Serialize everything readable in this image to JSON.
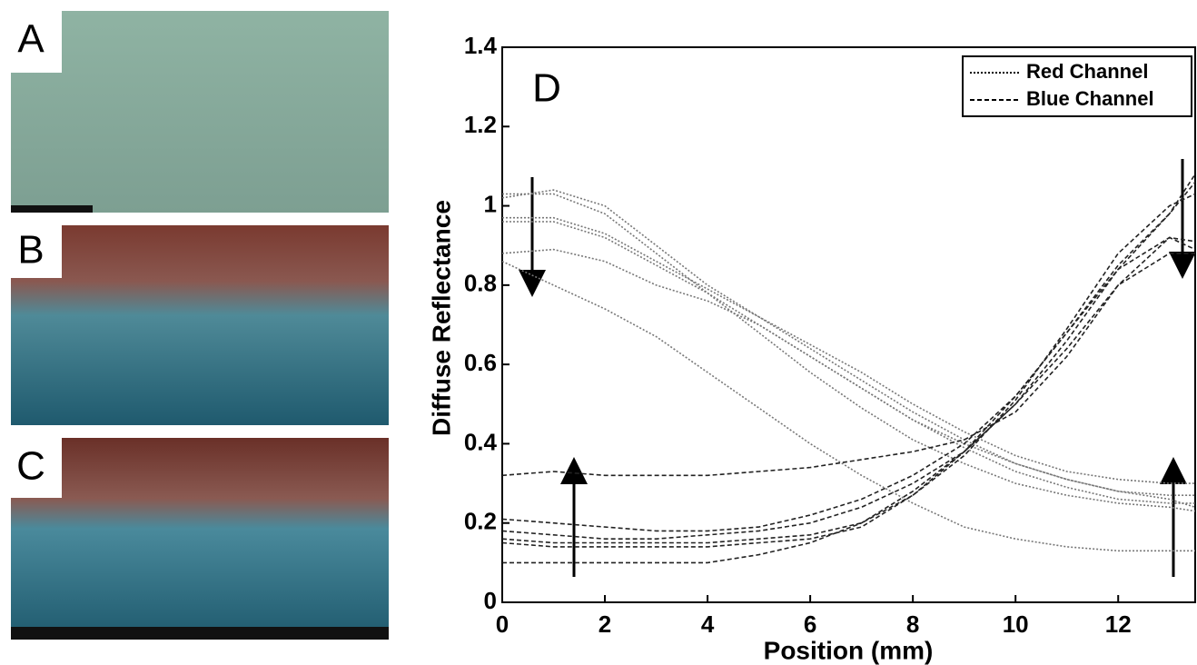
{
  "panels": [
    "A",
    "B",
    "C"
  ],
  "chart_data": {
    "type": "line",
    "panel_label": "D",
    "x_label": "Position (mm)",
    "y_label": "Diffuse Reflectance",
    "x": [
      0,
      1,
      2,
      3,
      4,
      5,
      6,
      7,
      8,
      9,
      10,
      11,
      12,
      13,
      13.5
    ],
    "xlim": [
      0,
      13.5
    ],
    "xticks": [
      0,
      2,
      4,
      6,
      8,
      10,
      12
    ],
    "ylim": [
      0,
      1.4
    ],
    "yticks": [
      0,
      0.2,
      0.4,
      0.6,
      0.8,
      1,
      1.2,
      1.4
    ],
    "legend": "upper right",
    "series": [
      {
        "name": "Red Channel",
        "color": "#777777",
        "dash": "2 2",
        "lines": [
          [
            1.03,
            1.03,
            0.98,
            0.88,
            0.78,
            0.68,
            0.58,
            0.49,
            0.41,
            0.35,
            0.3,
            0.27,
            0.25,
            0.24,
            0.23
          ],
          [
            1.02,
            1.04,
            1.0,
            0.9,
            0.8,
            0.72,
            0.64,
            0.56,
            0.48,
            0.41,
            0.35,
            0.31,
            0.28,
            0.26,
            0.24
          ],
          [
            0.97,
            0.97,
            0.93,
            0.86,
            0.79,
            0.72,
            0.65,
            0.58,
            0.5,
            0.43,
            0.37,
            0.33,
            0.31,
            0.3,
            0.3
          ],
          [
            0.96,
            0.96,
            0.92,
            0.85,
            0.78,
            0.7,
            0.62,
            0.54,
            0.46,
            0.4,
            0.35,
            0.31,
            0.28,
            0.27,
            0.27
          ],
          [
            0.88,
            0.89,
            0.86,
            0.8,
            0.76,
            0.7,
            0.62,
            0.54,
            0.46,
            0.39,
            0.33,
            0.29,
            0.26,
            0.25,
            0.25
          ],
          [
            0.86,
            0.8,
            0.74,
            0.67,
            0.58,
            0.49,
            0.4,
            0.32,
            0.25,
            0.19,
            0.16,
            0.14,
            0.13,
            0.13,
            0.13
          ]
        ]
      },
      {
        "name": "Blue Channel",
        "color": "#222222",
        "dash": "5 3",
        "lines": [
          [
            0.32,
            0.33,
            0.32,
            0.32,
            0.32,
            0.33,
            0.34,
            0.36,
            0.38,
            0.41,
            0.48,
            0.62,
            0.8,
            0.92,
            0.89
          ],
          [
            0.21,
            0.2,
            0.19,
            0.18,
            0.18,
            0.19,
            0.22,
            0.26,
            0.32,
            0.4,
            0.52,
            0.68,
            0.85,
            0.98,
            1.06
          ],
          [
            0.18,
            0.17,
            0.16,
            0.16,
            0.17,
            0.18,
            0.2,
            0.24,
            0.3,
            0.38,
            0.5,
            0.66,
            0.84,
            0.98,
            1.08
          ],
          [
            0.16,
            0.15,
            0.15,
            0.15,
            0.15,
            0.16,
            0.17,
            0.2,
            0.27,
            0.37,
            0.51,
            0.69,
            0.88,
            1.0,
            1.03
          ],
          [
            0.15,
            0.14,
            0.14,
            0.14,
            0.14,
            0.15,
            0.16,
            0.19,
            0.27,
            0.38,
            0.52,
            0.68,
            0.84,
            0.92,
            0.91
          ],
          [
            0.1,
            0.1,
            0.1,
            0.1,
            0.1,
            0.12,
            0.15,
            0.2,
            0.28,
            0.38,
            0.5,
            0.64,
            0.8,
            0.88,
            0.88
          ]
        ]
      }
    ]
  }
}
